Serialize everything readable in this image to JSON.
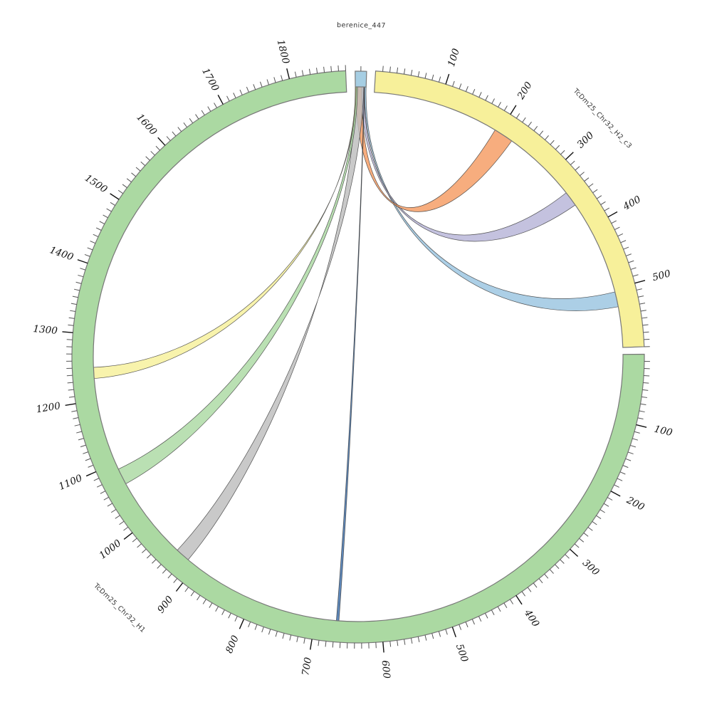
{
  "figure": {
    "background": "#FFFFFF",
    "kind": "circos-alignment-plot"
  },
  "chart_data": {
    "type": "chord",
    "title": "",
    "legend_position": "none",
    "units_per_minor_tick": 10,
    "units_per_major_tick": 100,
    "sequences": [
      {
        "label": "berenice_447",
        "color": "#A6CEE3",
        "start_deg": -0.6,
        "end_deg": 1.7,
        "length": 20,
        "tick_labels": []
      },
      {
        "label": "TcDm25_Chr32_H2_c3",
        "color": "#F7F09A",
        "start_deg": 3.5,
        "end_deg": 88.0,
        "length": 590,
        "tick_labels": [
          100,
          200,
          300,
          400,
          500
        ]
      },
      {
        "label": "TcDm25_Chr32_H1",
        "color": "#ABD9A2",
        "start_deg": 89.5,
        "end_deg": 357.5,
        "length": 1880,
        "tick_labels": [
          100,
          200,
          300,
          400,
          500,
          600,
          700,
          800,
          900,
          1000,
          1100,
          1200,
          1300,
          1400,
          1500,
          1600,
          1700,
          1800
        ]
      }
    ],
    "ribbons": [
      {
        "name": "ribbon-orange",
        "color": "#F59B62",
        "source_seq": 0,
        "source_span_frac": [
          0.02,
          0.6
        ],
        "target_seq": 1,
        "target_span_units": [
          193,
          223
        ],
        "twist": false
      },
      {
        "name": "ribbon-purple",
        "color": "#B7B4D8",
        "source_seq": 0,
        "source_span_frac": [
          0.58,
          0.84
        ],
        "target_seq": 1,
        "target_span_units": [
          337,
          360
        ],
        "twist": false
      },
      {
        "name": "ribbon-lightblue",
        "color": "#9AC4E0",
        "source_seq": 0,
        "source_span_frac": [
          0.86,
          1.0
        ],
        "target_seq": 1,
        "target_span_units": [
          505,
          528
        ],
        "twist": false
      },
      {
        "name": "ribbon-yellow",
        "color": "#F7F09A",
        "source_seq": 0,
        "source_span_frac": [
          0.0,
          0.07
        ],
        "target_seq": 2,
        "target_span_units": [
          1233,
          1250
        ],
        "twist": true
      },
      {
        "name": "ribbon-green",
        "color": "#ABD9A2",
        "source_seq": 0,
        "source_span_frac": [
          0.02,
          0.2
        ],
        "target_seq": 2,
        "target_span_units": [
          1065,
          1090
        ],
        "twist": false
      },
      {
        "name": "ribbon-gray",
        "color": "#BDBDBD",
        "source_seq": 0,
        "source_span_frac": [
          0.0,
          0.78
        ],
        "target_seq": 2,
        "target_span_units": [
          915,
          937
        ],
        "twist": true
      },
      {
        "name": "ribbon-navy-line",
        "color": "#3A6CA8",
        "source_seq": 0,
        "source_span_frac": [
          0.82,
          0.86
        ],
        "target_seq": 2,
        "target_span_units": [
          664,
          668
        ],
        "twist": false
      }
    ]
  }
}
